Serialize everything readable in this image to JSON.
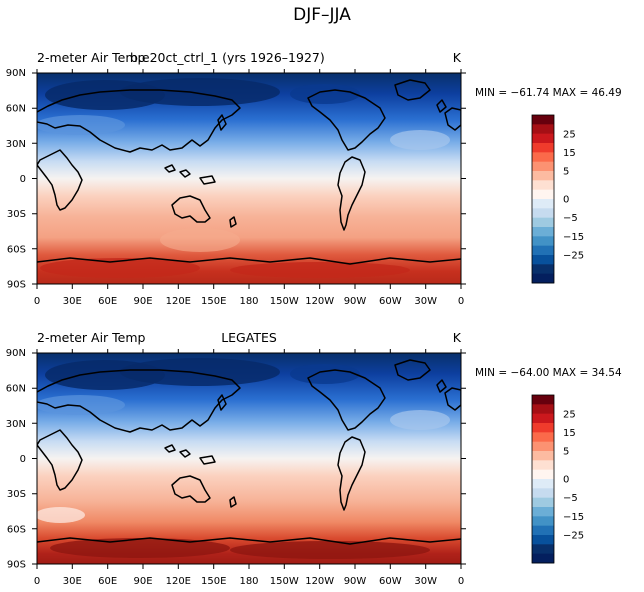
{
  "figure": {
    "title": "DJF–JJA",
    "panels": [
      {
        "left_title": "2-meter Air Temp",
        "center_title": "b.e20ct_ctrl_1 (yrs 1926–1927)",
        "unit": "K",
        "stats": "MIN = −61.74 MAX =  46.49"
      },
      {
        "left_title": "2-meter Air Temp",
        "center_title": "LEGATES",
        "unit": "K",
        "stats": "MIN = −64.00 MAX =  34.54"
      }
    ]
  },
  "chart_data": {
    "type": "heatmap",
    "projection": "cylindrical-equidistant",
    "lon_ticks": [
      "0",
      "30E",
      "60E",
      "90E",
      "120E",
      "150E",
      "180",
      "150W",
      "120W",
      "90W",
      "60W",
      "30W",
      "0"
    ],
    "lat_ticks": [
      "90N",
      "60N",
      "30N",
      "0",
      "30S",
      "60S",
      "90S"
    ],
    "colorbar": {
      "labels": [
        "25",
        "15",
        "5",
        "0",
        "−5",
        "−15",
        "−25"
      ],
      "colors": [
        "#67000d",
        "#a50f15",
        "#cb181d",
        "#ef3b2c",
        "#fb6a4a",
        "#fc9272",
        "#fcbba1",
        "#fee0d2",
        "#fff5f0",
        "#deebf7",
        "#c6dbef",
        "#9ecae1",
        "#6baed6",
        "#4292c6",
        "#2171b5",
        "#08519c",
        "#08306b",
        "#041f5e"
      ]
    }
  }
}
